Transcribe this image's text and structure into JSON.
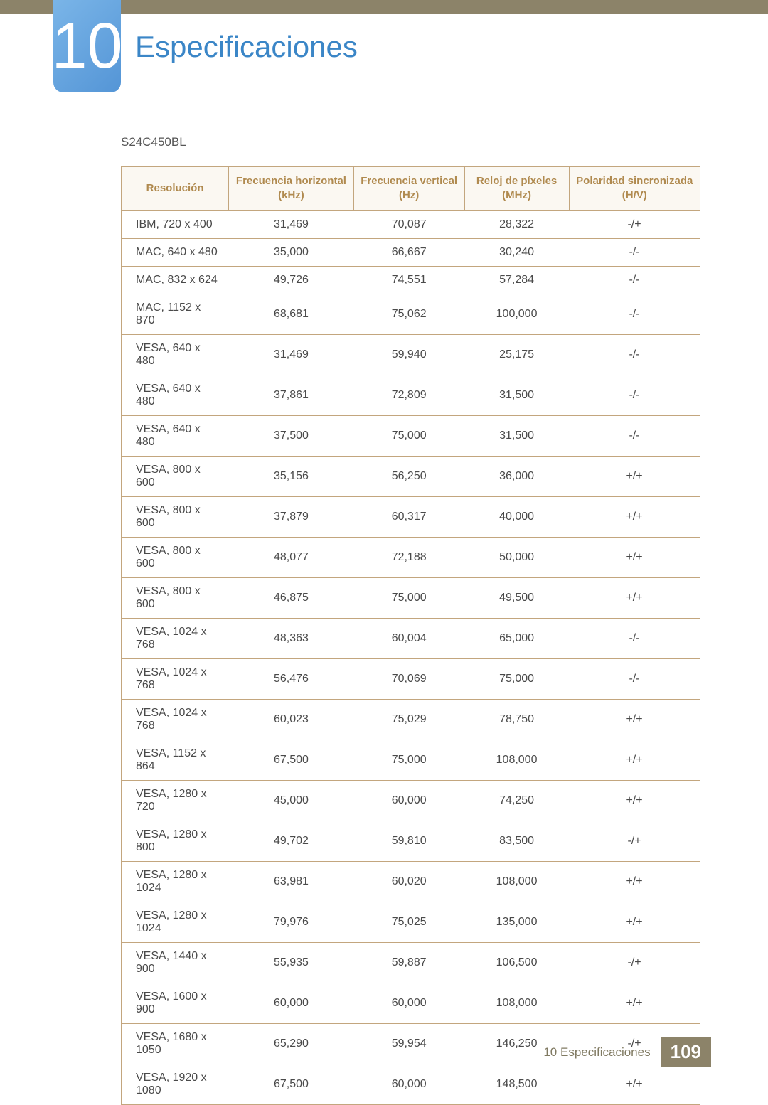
{
  "chapter": {
    "number": "10",
    "title": "Especificaciones"
  },
  "model": "S24C450BL",
  "table": {
    "border_color": "#c3a67e",
    "header_bg": "#fbf8f2",
    "header_color": "#b08a4f",
    "columns": [
      "Resolución",
      "Frecuencia horizontal (kHz)",
      "Frecuencia vertical (Hz)",
      "Reloj de píxeles (MHz)",
      "Polaridad sincronizada (H/V)"
    ],
    "rows": [
      [
        "IBM, 720 x 400",
        "31,469",
        "70,087",
        "28,322",
        "-/+"
      ],
      [
        "MAC, 640 x 480",
        "35,000",
        "66,667",
        "30,240",
        "-/-"
      ],
      [
        "MAC, 832 x 624",
        "49,726",
        "74,551",
        "57,284",
        "-/-"
      ],
      [
        "MAC, 1152 x 870",
        "68,681",
        "75,062",
        "100,000",
        "-/-"
      ],
      [
        "VESA, 640 x 480",
        "31,469",
        "59,940",
        "25,175",
        "-/-"
      ],
      [
        "VESA, 640 x 480",
        "37,861",
        "72,809",
        "31,500",
        "-/-"
      ],
      [
        "VESA, 640 x 480",
        "37,500",
        "75,000",
        "31,500",
        "-/-"
      ],
      [
        "VESA, 800 x 600",
        "35,156",
        "56,250",
        "36,000",
        "+/+"
      ],
      [
        "VESA, 800 x 600",
        "37,879",
        "60,317",
        "40,000",
        "+/+"
      ],
      [
        "VESA, 800 x 600",
        "48,077",
        "72,188",
        "50,000",
        "+/+"
      ],
      [
        "VESA, 800 x 600",
        "46,875",
        "75,000",
        "49,500",
        "+/+"
      ],
      [
        "VESA, 1024 x 768",
        "48,363",
        "60,004",
        "65,000",
        "-/-"
      ],
      [
        "VESA, 1024 x 768",
        "56,476",
        "70,069",
        "75,000",
        "-/-"
      ],
      [
        "VESA, 1024 x 768",
        "60,023",
        "75,029",
        "78,750",
        "+/+"
      ],
      [
        "VESA, 1152 x 864",
        "67,500",
        "75,000",
        "108,000",
        "+/+"
      ],
      [
        "VESA, 1280 x 720",
        "45,000",
        "60,000",
        "74,250",
        "+/+"
      ],
      [
        "VESA, 1280 x 800",
        "49,702",
        "59,810",
        "83,500",
        "-/+"
      ],
      [
        "VESA, 1280 x 1024",
        "63,981",
        "60,020",
        "108,000",
        "+/+"
      ],
      [
        "VESA, 1280 x 1024",
        "79,976",
        "75,025",
        "135,000",
        "+/+"
      ],
      [
        "VESA, 1440 x 900",
        "55,935",
        "59,887",
        "106,500",
        "-/+"
      ],
      [
        "VESA, 1600 x 900",
        "60,000",
        "60,000",
        "108,000",
        "+/+"
      ],
      [
        "VESA, 1680 x 1050",
        "65,290",
        "59,954",
        "146,250",
        "-/+"
      ],
      [
        "VESA, 1920 x 1080",
        "67,500",
        "60,000",
        "148,500",
        "+/+"
      ]
    ]
  },
  "footer": {
    "text": "10 Especificaciones",
    "page": "109",
    "bg": "#8c8369"
  }
}
